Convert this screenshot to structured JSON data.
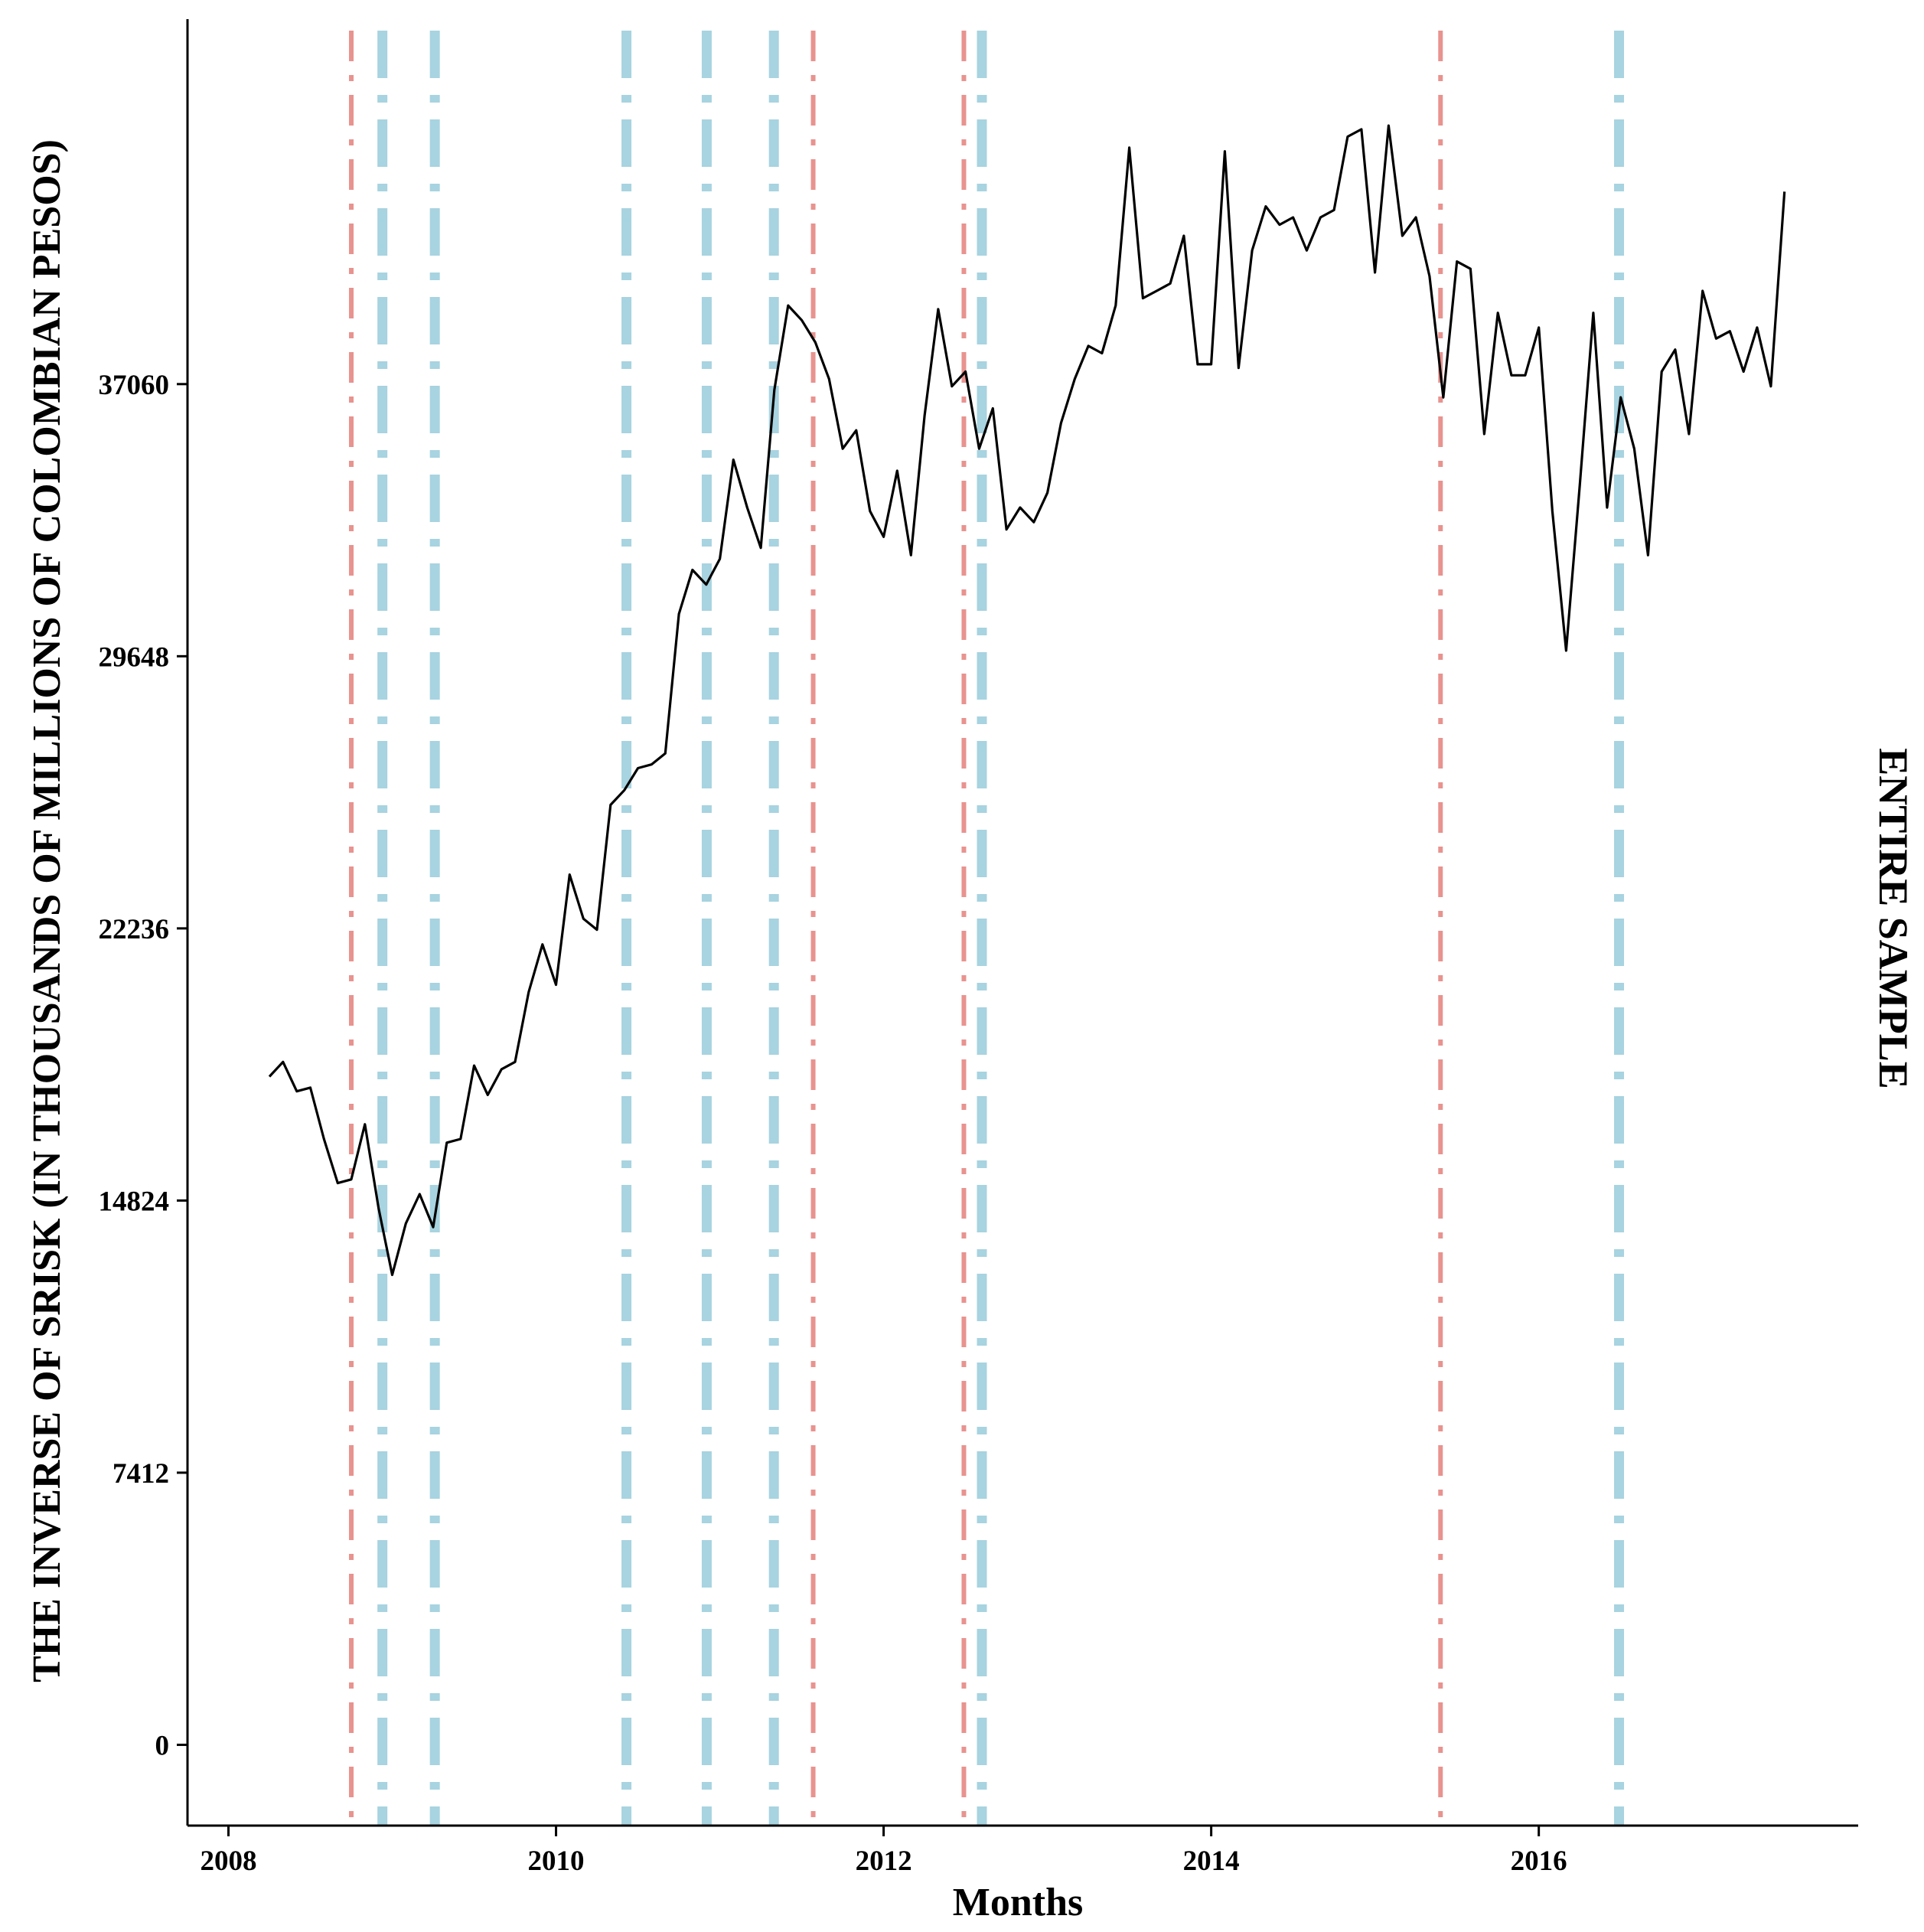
{
  "chart_data": {
    "type": "line",
    "title": "",
    "xlabel": "Months",
    "ylabel": "THE INVERSE OF SRISK (IN THOUSANDS OF MILLIONS OF COLOMBIAN PESOS)",
    "panel_label": "ENTIRE SAMPLE",
    "xlim": [
      2007.75,
      2017.95
    ],
    "ylim": [
      -2200,
      47000
    ],
    "x_ticks": [
      2008,
      2010,
      2012,
      2014,
      2016
    ],
    "x_tick_labels": [
      "2008",
      "2010",
      "2012",
      "2014",
      "2016"
    ],
    "y_ticks": [
      0,
      7412,
      14824,
      22236,
      29648,
      37060
    ],
    "y_tick_labels": [
      "0",
      "7412",
      "14824",
      "22236",
      "29648",
      "37060"
    ],
    "grid": false,
    "legend": "none",
    "series": [
      {
        "color": "#000000",
        "x": [
          2008.25,
          2008.333,
          2008.417,
          2008.5,
          2008.583,
          2008.667,
          2008.75,
          2008.833,
          2008.917,
          2009.0,
          2009.083,
          2009.167,
          2009.25,
          2009.333,
          2009.417,
          2009.5,
          2009.583,
          2009.667,
          2009.75,
          2009.833,
          2009.917,
          2010.0,
          2010.083,
          2010.167,
          2010.25,
          2010.333,
          2010.417,
          2010.5,
          2010.583,
          2010.667,
          2010.75,
          2010.833,
          2010.917,
          2011.0,
          2011.083,
          2011.167,
          2011.25,
          2011.333,
          2011.417,
          2011.5,
          2011.583,
          2011.667,
          2011.75,
          2011.833,
          2011.917,
          2012.0,
          2012.083,
          2012.167,
          2012.25,
          2012.333,
          2012.417,
          2012.5,
          2012.583,
          2012.667,
          2012.75,
          2012.833,
          2012.917,
          2013.0,
          2013.083,
          2013.167,
          2013.25,
          2013.333,
          2013.417,
          2013.5,
          2013.583,
          2013.667,
          2013.75,
          2013.833,
          2013.917,
          2014.0,
          2014.083,
          2014.167,
          2014.25,
          2014.333,
          2014.417,
          2014.5,
          2014.583,
          2014.667,
          2014.75,
          2014.833,
          2014.917,
          2015.0,
          2015.083,
          2015.167,
          2015.25,
          2015.333,
          2015.417,
          2015.5,
          2015.583,
          2015.667,
          2015.75,
          2015.833,
          2015.917,
          2016.0,
          2016.083,
          2016.167,
          2016.25,
          2016.333,
          2016.417,
          2016.5,
          2016.583,
          2016.667,
          2016.75,
          2016.833,
          2016.917,
          2017.0,
          2017.083,
          2017.167,
          2017.25,
          2017.333,
          2017.417,
          2017.5
        ],
        "y": [
          18200,
          18600,
          17800,
          17900,
          16500,
          15300,
          15400,
          16900,
          14600,
          12800,
          14200,
          15000,
          14100,
          16400,
          16500,
          18500,
          17700,
          18400,
          18600,
          20500,
          21800,
          20700,
          23700,
          22500,
          22200,
          25600,
          26000,
          26600,
          26700,
          27000,
          30800,
          32000,
          31600,
          32300,
          35000,
          33700,
          32600,
          36900,
          39200,
          38800,
          38200,
          37200,
          35300,
          35800,
          33600,
          32900,
          34700,
          32400,
          36200,
          39100,
          37000,
          37400,
          35300,
          36400,
          33100,
          33700,
          33300,
          34100,
          36000,
          37200,
          38100,
          37900,
          39200,
          43500,
          39400,
          39600,
          39800,
          41100,
          37600,
          37600,
          43400,
          37500,
          40700,
          41900,
          41400,
          41600,
          40700,
          41600,
          41800,
          43800,
          44000,
          40100,
          44100,
          41100,
          41600,
          40000,
          36700,
          40400,
          40200,
          35700,
          39000,
          37300,
          37300,
          38600,
          33600,
          29800,
          34300,
          39000,
          33700,
          36700,
          35300,
          32400,
          37400,
          38000,
          35700,
          39600,
          38300,
          38500,
          37400,
          38600,
          37000,
          42300
        ]
      }
    ],
    "vertical_lines": [
      {
        "x": 2008.75,
        "color": "#e8938f",
        "style": "dotdash-thin"
      },
      {
        "x": 2008.94,
        "color": "#a8d3e0",
        "style": "dotdash-thick"
      },
      {
        "x": 2009.26,
        "color": "#a8d3e0",
        "style": "dotdash-thick"
      },
      {
        "x": 2010.43,
        "color": "#a8d3e0",
        "style": "dotdash-thick"
      },
      {
        "x": 2010.92,
        "color": "#a8d3e0",
        "style": "dotdash-thick"
      },
      {
        "x": 2011.33,
        "color": "#a8d3e0",
        "style": "dotdash-thick"
      },
      {
        "x": 2011.57,
        "color": "#e8938f",
        "style": "dotdash-thin"
      },
      {
        "x": 2012.49,
        "color": "#e8938f",
        "style": "dotdash-thin"
      },
      {
        "x": 2012.6,
        "color": "#a8d3e0",
        "style": "dotdash-thick"
      },
      {
        "x": 2015.4,
        "color": "#e8938f",
        "style": "dotdash-thin"
      },
      {
        "x": 2016.49,
        "color": "#a8d3e0",
        "style": "dotdash-thick"
      }
    ]
  }
}
